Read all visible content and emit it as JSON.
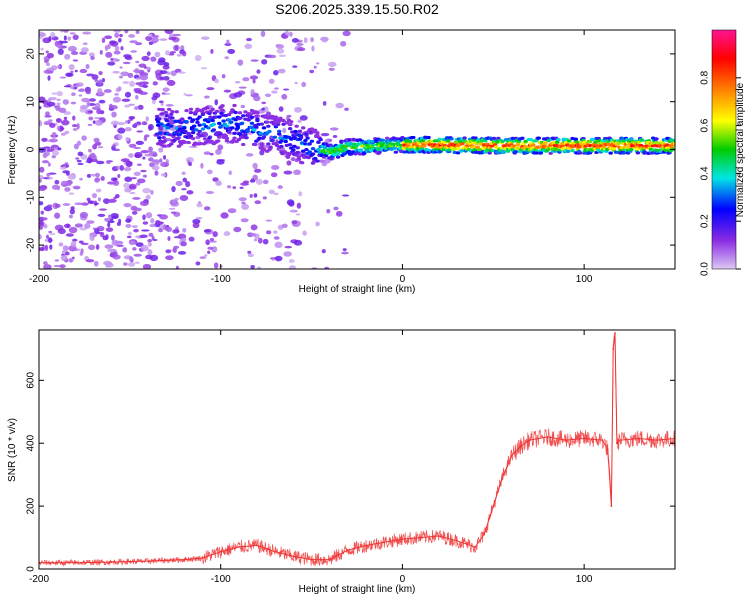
{
  "title": "S206.2025.339.15.50.R02",
  "chart_data": [
    {
      "type": "heatmap",
      "name": "spectrogram",
      "xlabel": "Height of straight line (km)",
      "ylabel": "Frequency (Hz)",
      "xlim": [
        -200,
        150
      ],
      "ylim": [
        -25,
        25
      ],
      "xticks": [
        -200,
        -100,
        0,
        100
      ],
      "xtick_labels": [
        "-200",
        "-100",
        "0",
        "100"
      ],
      "yticks": [
        -20,
        -10,
        0,
        10,
        20
      ],
      "ytick_labels": [
        "-20",
        "-10",
        "0",
        "10",
        "20"
      ],
      "colorbar": {
        "label": "Normalized spectral amplitude",
        "range": [
          0,
          1
        ],
        "ticks": [
          0.0,
          0.2,
          0.4,
          0.6,
          0.8
        ],
        "tick_labels": [
          "0.0",
          "0.2",
          "0.4",
          "0.6",
          "0.8"
        ],
        "colormap": [
          "#dcc8f5",
          "#8a2be2",
          "#0000ff",
          "#00e5e5",
          "#00cc00",
          "#ffff00",
          "#ff8000",
          "#ff0000",
          "#ff1493"
        ]
      },
      "ridge": [
        {
          "x": -130,
          "f": 4.5
        },
        {
          "x": -110,
          "f": 5.0
        },
        {
          "x": -95,
          "f": 5.5
        },
        {
          "x": -80,
          "f": 4.0
        },
        {
          "x": -65,
          "f": 2.5
        },
        {
          "x": -50,
          "f": 0.5
        },
        {
          "x": -40,
          "f": -0.5
        },
        {
          "x": -30,
          "f": 0.5
        },
        {
          "x": -10,
          "f": 0.8
        },
        {
          "x": 10,
          "f": 1.0
        },
        {
          "x": 50,
          "f": 0.8
        },
        {
          "x": 100,
          "f": 0.8
        },
        {
          "x": 150,
          "f": 0.8
        }
      ]
    },
    {
      "type": "line",
      "name": "snr",
      "xlabel": "Height of straight line (km)",
      "ylabel": "SNR (10 * v/v)",
      "xlim": [
        -200,
        150
      ],
      "ylim": [
        0,
        760
      ],
      "xticks": [
        -200,
        -100,
        0,
        100
      ],
      "xtick_labels": [
        "-200",
        "-100",
        "0",
        "100"
      ],
      "yticks": [
        0,
        200,
        400,
        600
      ],
      "ytick_labels": [
        "0",
        "200",
        "400",
        "600"
      ],
      "color": "#ee3333",
      "x": [
        -200,
        -180,
        -160,
        -140,
        -120,
        -110,
        -100,
        -90,
        -80,
        -70,
        -60,
        -50,
        -40,
        -30,
        -20,
        -10,
        0,
        10,
        20,
        30,
        40,
        45,
        50,
        55,
        60,
        65,
        70,
        80,
        90,
        100,
        110,
        113,
        115,
        116,
        117,
        118,
        120,
        130,
        140,
        150
      ],
      "y": [
        20,
        20,
        22,
        25,
        30,
        35,
        55,
        70,
        75,
        55,
        40,
        30,
        30,
        60,
        75,
        85,
        95,
        100,
        105,
        90,
        70,
        110,
        200,
        290,
        360,
        390,
        410,
        420,
        410,
        415,
        410,
        380,
        200,
        700,
        750,
        400,
        410,
        415,
        410,
        415
      ]
    }
  ]
}
